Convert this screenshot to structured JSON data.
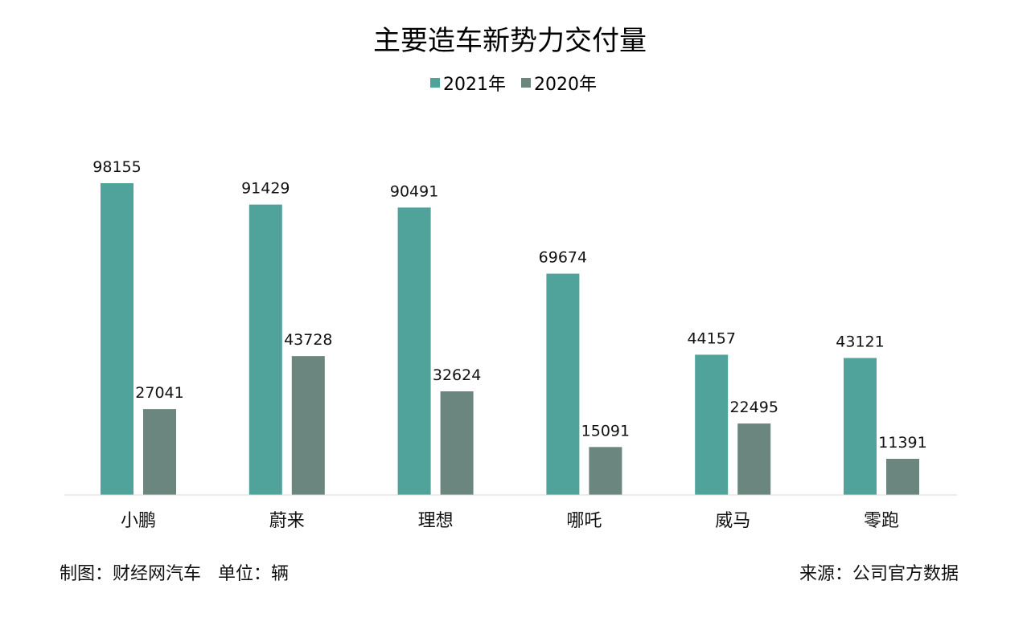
{
  "chart_data": {
    "type": "bar",
    "title": "主要造车新势力交付量",
    "categories": [
      "小鹏",
      "蔚来",
      "理想",
      "哪吒",
      "威马",
      "零跑"
    ],
    "series": [
      {
        "name": "2021年",
        "values": [
          98155,
          91429,
          90491,
          69674,
          44157,
          43121
        ],
        "color": "#50a39a"
      },
      {
        "name": "2020年",
        "values": [
          27041,
          43728,
          32624,
          15091,
          22495,
          11391
        ],
        "color": "#6b857f"
      }
    ],
    "ylim": [
      0,
      100000
    ],
    "xlabel": "",
    "ylabel": "",
    "grid": false,
    "legend_position": "top-center",
    "data_labels": true
  },
  "footer": {
    "left_credit": "制图：财经网汽车",
    "left_unit": "单位：辆",
    "right_source": "来源：公司官方数据"
  }
}
